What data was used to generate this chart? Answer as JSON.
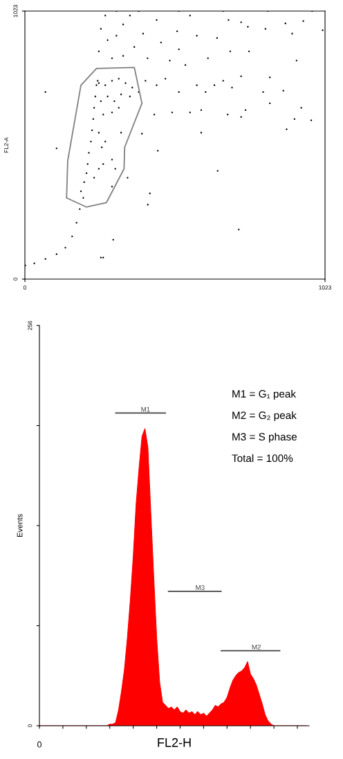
{
  "chart_data": [
    {
      "type": "scatter",
      "ylabel": "FL2-A",
      "xlim": [
        0,
        1023
      ],
      "ylim": [
        0,
        1023
      ],
      "xticks": [
        0,
        1023
      ],
      "yticks": [
        0,
        1023
      ],
      "marker": "circle",
      "series": [
        {
          "type": "scatter",
          "color": "#000000",
          "x": [
            1.5,
            32,
            70,
            108,
            138,
            161,
            176,
            187,
            199,
            191,
            202,
            210,
            214,
            218,
            225,
            229,
            233,
            236,
            240,
            244,
            248,
            252,
            274,
            297,
            320,
            343,
            366,
            259,
            282,
            305,
            328,
            358,
            388,
            267,
            297,
            320,
            252,
            274,
            267,
            297,
            252,
            236,
            297,
            328,
            262,
            308,
            259,
            282,
            312,
            335,
            358,
            274,
            252,
            297,
            335,
            373,
            403,
            418,
            449,
            464,
            494,
            519,
            525,
            563,
            586,
            624,
            655,
            694,
            700,
            737,
            760,
            764,
            820,
            888,
            911,
            949,
            926,
            1015,
            411,
            449,
            479,
            525,
            547,
            586,
            616,
            646,
            676,
            706,
            737,
            441,
            502,
            563,
            601,
            691,
            737,
            752,
            812,
            835,
            881,
            835,
            942,
            919,
            976,
            892,
            601,
            399,
            70,
            108,
            453,
            657,
            426,
            419,
            729,
            301,
            259,
            267,
            350,
            312,
            388,
            525,
            676,
            828,
            979
          ],
          "values": [
            52,
            60,
            77,
            95,
            120,
            163,
            215,
            267,
            310,
            335,
            370,
            404,
            439,
            482,
            525,
            568,
            611,
            654,
            697,
            740,
            757,
            748,
            740,
            757,
            765,
            748,
            731,
            679,
            697,
            679,
            705,
            697,
            714,
            628,
            636,
            654,
            559,
            525,
            439,
            456,
            421,
            387,
            353,
            559,
            503,
            421,
            955,
            912,
            929,
            972,
            1006,
            1006,
            869,
            843,
            852,
            886,
            937,
            843,
            989,
            903,
            834,
            946,
            877,
            1006,
            929,
            843,
            920,
            989,
            869,
            980,
            963,
            869,
            955,
            976,
            937,
            985,
            834,
            950,
            757,
            740,
            765,
            714,
            817,
            740,
            714,
            740,
            757,
            731,
            774,
            628,
            636,
            636,
            645,
            628,
            619,
            645,
            714,
            770,
            719,
            671,
            654,
            611,
            606,
            572,
            559,
            555,
            714,
            499,
            490,
            413,
            327,
            284,
            189,
            150,
            82,
            82,
            387,
            1023,
            1023,
            1023,
            1023,
            1023,
            1023
          ]
        },
        {
          "type": "line",
          "color": "#808080",
          "marker": "none",
          "x": [
            142,
            146,
            191,
            244,
            373,
            399
          ],
          "values": [
            310,
            452,
            740,
            804,
            808,
            671
          ]
        },
        {
          "type": "line",
          "color": "#808080",
          "marker": "none",
          "x": [
            142,
            210,
            278,
            338,
            340,
            399
          ],
          "values": [
            310,
            275,
            292,
            421,
            503,
            671
          ]
        }
      ]
    },
    {
      "type": "area",
      "ylabel": "Events",
      "xlabel": "FL2-H",
      "ylim": [
        0,
        256
      ],
      "categories": [
        null,
        null,
        null,
        null,
        null,
        null,
        null,
        null,
        null,
        null,
        null,
        null,
        null,
        null,
        null,
        null,
        null,
        null,
        null,
        null,
        null,
        null,
        null,
        null,
        null,
        null,
        null,
        null,
        null,
        null,
        null,
        null,
        null,
        null,
        null,
        null,
        null,
        null,
        null,
        null,
        null,
        null,
        null,
        null,
        null,
        null,
        null,
        null,
        null,
        null,
        null,
        null,
        null,
        null,
        null,
        null,
        null,
        null,
        null,
        null,
        null,
        null,
        null,
        null,
        null,
        null,
        null,
        null,
        null,
        null,
        null,
        null,
        null,
        null,
        null,
        null,
        null,
        null,
        null,
        null,
        null,
        null,
        null,
        null,
        null,
        null,
        null,
        null,
        null,
        null,
        null,
        null
      ],
      "yticks": [
        0,
        {
          "value": 64,
          "label": null
        },
        {
          "value": 128,
          "label": null
        },
        {
          "value": 192,
          "label": null
        },
        256
      ],
      "annotations": [
        "0",
        "M1 = G₁ peak",
        "M2 = G₂ peak",
        "M3 = S phase",
        "Total = 100%"
      ],
      "series": [
        {
          "type": "area",
          "color": "#ff0000",
          "values": [
            0,
            0,
            0,
            0,
            0,
            0,
            0,
            0,
            0,
            0,
            0,
            0,
            0,
            0,
            0,
            0,
            0,
            0,
            0,
            0,
            0,
            0,
            0,
            0,
            1,
            1,
            2,
            10,
            22,
            36,
            56,
            80,
            108,
            142,
            165,
            185,
            190,
            178,
            136,
            95,
            56,
            28,
            15,
            13,
            11,
            12,
            10,
            12,
            9,
            8,
            10,
            8,
            9,
            7,
            9,
            7,
            8,
            6,
            8,
            10,
            13,
            12,
            14,
            15,
            18,
            24,
            29,
            32,
            34,
            35,
            37,
            41,
            33,
            30,
            26,
            20,
            14,
            7,
            3,
            1,
            0,
            0,
            0,
            0,
            0,
            0,
            0,
            0,
            0,
            0,
            0,
            0
          ]
        },
        {
          "type": "line",
          "name": "M1",
          "color": "#404040",
          "values": [
            null,
            null,
            null,
            null,
            null,
            null,
            null,
            null,
            null,
            null,
            null,
            null,
            null,
            null,
            null,
            null,
            null,
            null,
            null,
            null,
            null,
            null,
            null,
            null,
            null,
            null,
            200,
            200,
            200,
            200,
            200,
            200,
            200,
            200,
            200,
            200,
            200,
            200,
            200,
            200,
            200,
            200,
            200,
            200,
            null,
            null,
            null,
            null,
            null,
            null,
            null,
            null,
            null,
            null,
            null,
            null,
            null,
            null,
            null,
            null,
            null,
            null,
            null,
            null,
            null,
            null,
            null,
            null,
            null,
            null,
            null,
            null,
            null,
            null,
            null,
            null,
            null,
            null,
            null,
            null,
            null,
            null,
            null,
            null,
            null,
            null,
            null,
            null,
            null,
            null,
            null,
            null
          ]
        },
        {
          "type": "line",
          "name": "M3",
          "color": "#404040",
          "values": [
            null,
            null,
            null,
            null,
            null,
            null,
            null,
            null,
            null,
            null,
            null,
            null,
            null,
            null,
            null,
            null,
            null,
            null,
            null,
            null,
            null,
            null,
            null,
            null,
            null,
            null,
            null,
            null,
            null,
            null,
            null,
            null,
            null,
            null,
            null,
            null,
            null,
            null,
            null,
            null,
            null,
            null,
            null,
            null,
            86,
            86,
            86,
            86,
            86,
            86,
            86,
            86,
            86,
            86,
            86,
            86,
            86,
            86,
            86,
            86,
            86,
            86,
            86,
            null,
            null,
            null,
            null,
            null,
            null,
            null,
            null,
            null,
            null,
            null,
            null,
            null,
            null,
            null,
            null,
            null,
            null,
            null,
            null,
            null,
            null,
            null,
            null,
            null,
            null,
            null,
            null,
            null
          ]
        },
        {
          "type": "line",
          "name": "M2",
          "color": "#404040",
          "values": [
            null,
            null,
            null,
            null,
            null,
            null,
            null,
            null,
            null,
            null,
            null,
            null,
            null,
            null,
            null,
            null,
            null,
            null,
            null,
            null,
            null,
            null,
            null,
            null,
            null,
            null,
            null,
            null,
            null,
            null,
            null,
            null,
            null,
            null,
            null,
            null,
            null,
            null,
            null,
            null,
            null,
            null,
            null,
            null,
            null,
            null,
            null,
            null,
            null,
            null,
            null,
            null,
            null,
            null,
            null,
            null,
            null,
            null,
            null,
            null,
            null,
            null,
            48,
            48,
            48,
            48,
            48,
            48,
            48,
            48,
            48,
            48,
            48,
            48,
            48,
            48,
            48,
            48,
            48,
            48,
            48,
            48,
            48,
            null,
            null,
            null,
            null,
            null,
            null,
            null,
            null,
            null
          ]
        }
      ]
    }
  ]
}
